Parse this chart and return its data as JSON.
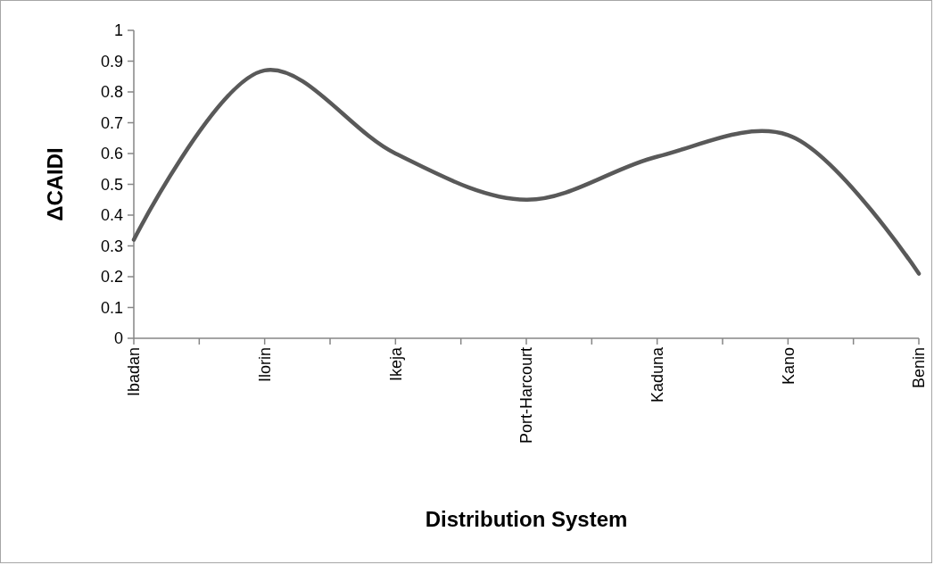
{
  "chart_data": {
    "type": "line",
    "xlabel": "Distribution System",
    "ylabel": "ΔCAIDI",
    "categories": [
      "Ibadan",
      "Ilorin",
      "Ikeja",
      "Port-Harcourt",
      "Kaduna",
      "Kano",
      "Benin"
    ],
    "series": [
      {
        "color": "#595959",
        "values": [
          0.32,
          0.87,
          0.6,
          0.45,
          0.59,
          0.66,
          0.21
        ]
      }
    ],
    "ylim": [
      0,
      1
    ],
    "yticks": [
      0,
      0.1,
      0.2,
      0.3,
      0.4,
      0.5,
      0.6,
      0.7,
      0.8,
      0.9,
      1
    ],
    "grid": false,
    "marker": "none",
    "line_style": "solid"
  }
}
